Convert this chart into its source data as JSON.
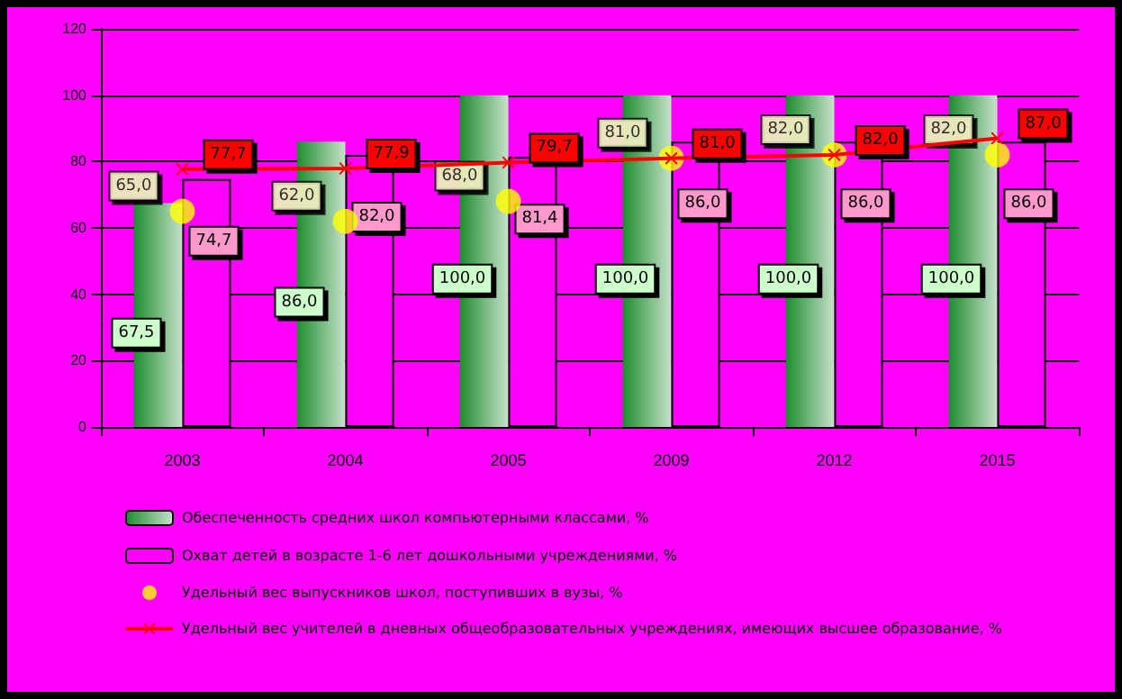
{
  "chart_data": {
    "type": "bar",
    "categories": [
      "2003",
      "2004",
      "2005",
      "2009",
      "2012",
      "2015"
    ],
    "ylim": [
      0,
      120
    ],
    "yticks": [
      0,
      20,
      40,
      60,
      80,
      100,
      120
    ],
    "grid": "y",
    "legend": "bottom",
    "series": [
      {
        "name": "Обеспеченность средних школ компьютерными классами, %",
        "color": "#1e8c2e",
        "values": [
          67.5,
          86,
          100,
          100,
          100,
          100
        ],
        "value_labels": [
          "67,5",
          "86,0",
          "100,0",
          "100,0",
          "100,0",
          "100,0"
        ]
      },
      {
        "name": "Охват детей в возрасте 1-6 лет дошкольными учреждениями, %",
        "color": "#ff00ff",
        "values": [
          74.7,
          82,
          81.4,
          86,
          86,
          86
        ],
        "value_labels": [
          "74,7",
          "82,0",
          "81,4",
          "86,0",
          "86,0",
          "86,0"
        ]
      },
      {
        "name": "Удельный вес выпускников школ, поступивших в вузы, %",
        "type": "scatter",
        "marker": "circle",
        "color": "#ffff00",
        "values": [
          65,
          62,
          68,
          81,
          82,
          82
        ],
        "value_labels": [
          "65,0",
          "62,0",
          "68,0",
          "81,0",
          "82,0",
          "82,0"
        ]
      },
      {
        "name": "Удельный вес учителей в дневных общеобразовательных учреждениях, имеющих высшее образование, %",
        "type": "line",
        "marker": "cross",
        "color": "#ff0000",
        "values": [
          77.7,
          77.9,
          79.7,
          81,
          82,
          87
        ],
        "value_labels": [
          "77,7",
          "77,9",
          "79,7",
          "81,0",
          "82,0",
          "87,0"
        ]
      }
    ]
  }
}
